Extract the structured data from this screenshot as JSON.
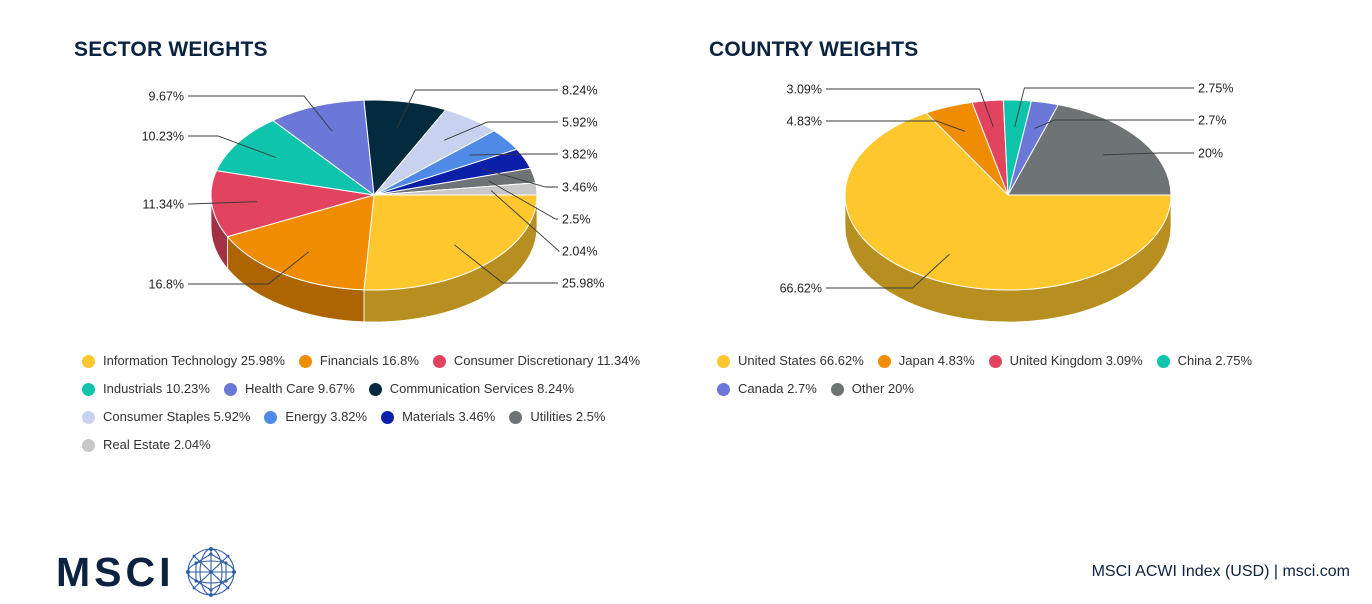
{
  "colors": {
    "title": "#0b2240",
    "label": "#1f1f1f"
  },
  "logo": {
    "wordmark": "MSCI",
    "icon": "globe-network-icon"
  },
  "footer": {
    "source": "MSCI ACWI Index (USD) | msci.com"
  },
  "chart_data": [
    {
      "type": "pie",
      "title": "SECTOR WEIGHTS",
      "legend_position": "bottom",
      "slices": [
        {
          "name": "Information Technology",
          "value": 25.98,
          "label": "25.98%",
          "legend": "Information Technology 25.98%",
          "color": "#FEC72E"
        },
        {
          "name": "Financials",
          "value": 16.8,
          "label": "16.8%",
          "legend": "Financials 16.8%",
          "color": "#F08C01"
        },
        {
          "name": "Consumer Discretionary",
          "value": 11.34,
          "label": "11.34%",
          "legend": "Consumer Discretionary 11.34%",
          "color": "#E2445F"
        },
        {
          "name": "Industrials",
          "value": 10.23,
          "label": "10.23%",
          "legend": "Industrials 10.23%",
          "color": "#0EC4AD"
        },
        {
          "name": "Health Care",
          "value": 9.67,
          "label": "9.67%",
          "legend": "Health Care 9.67%",
          "color": "#6B78D7"
        },
        {
          "name": "Communication Services",
          "value": 8.24,
          "label": "8.24%",
          "legend": "Communication Services 8.24%",
          "color": "#032A3D"
        },
        {
          "name": "Consumer Staples",
          "value": 5.92,
          "label": "5.92%",
          "legend": "Consumer Staples 5.92%",
          "color": "#C8D2EE"
        },
        {
          "name": "Energy",
          "value": 3.82,
          "label": "3.82%",
          "legend": "Energy 3.82%",
          "color": "#4F8BE6"
        },
        {
          "name": "Materials",
          "value": 3.46,
          "label": "3.46%",
          "legend": "Materials 3.46%",
          "color": "#0B1FA8"
        },
        {
          "name": "Utilities",
          "value": 2.5,
          "label": "2.5%",
          "legend": "Utilities 2.5%",
          "color": "#6E7376"
        },
        {
          "name": "Real Estate",
          "value": 2.04,
          "label": "2.04%",
          "legend": "Real Estate 2.04%",
          "color": "#C7C7C7"
        }
      ]
    },
    {
      "type": "pie",
      "title": "COUNTRY WEIGHTS",
      "legend_position": "bottom",
      "slices": [
        {
          "name": "United States",
          "value": 66.62,
          "label": "66.62%",
          "legend": "United States 66.62%",
          "color": "#FEC72E"
        },
        {
          "name": "Japan",
          "value": 4.83,
          "label": "4.83%",
          "legend": "Japan 4.83%",
          "color": "#F08C01"
        },
        {
          "name": "United Kingdom",
          "value": 3.09,
          "label": "3.09%",
          "legend": "United Kingdom 3.09%",
          "color": "#E2445F"
        },
        {
          "name": "China",
          "value": 2.75,
          "label": "2.75%",
          "legend": "China 2.75%",
          "color": "#0EC4AD"
        },
        {
          "name": "Canada",
          "value": 2.7,
          "label": "2.7%",
          "legend": "Canada 2.7%",
          "color": "#6B78D7"
        },
        {
          "name": "Other",
          "value": 20,
          "label": "20%",
          "legend": "Other 20%",
          "color": "#6E7376"
        }
      ]
    }
  ]
}
